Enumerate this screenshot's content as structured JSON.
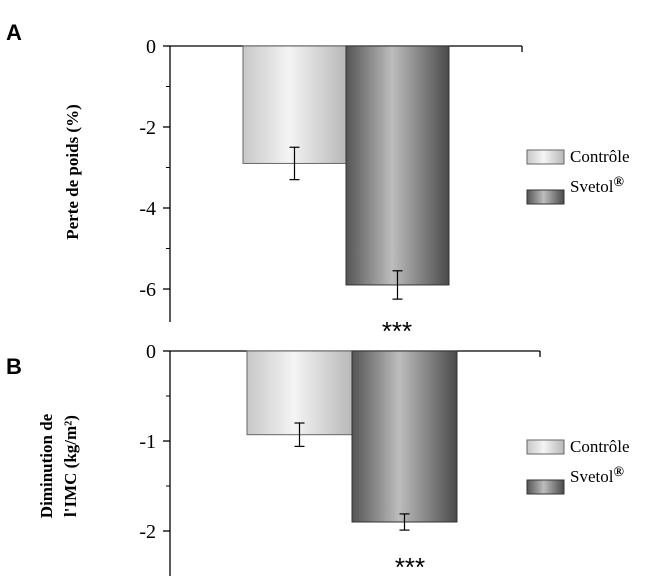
{
  "colors": {
    "control_bar": "#dcdcdc",
    "svetol_bar": "#7a7a7a",
    "axis": "#000000",
    "text": "#000000"
  },
  "chart_data": [
    {
      "type": "bar",
      "panel_label": "A",
      "ylabel": "Perte de poids (%)",
      "ylim": [
        -6.8,
        0
      ],
      "yticks": [
        0,
        -2,
        -4,
        -6
      ],
      "ytick_labels": [
        "0",
        "-2",
        "-4",
        "-6"
      ],
      "legend": "right",
      "series": [
        {
          "name": "Contrôle",
          "value": -2.9,
          "error": 0.4
        },
        {
          "name": "Svetol",
          "name_suffix": "®",
          "value": -5.9,
          "error": 0.35,
          "annotation": "***"
        }
      ]
    },
    {
      "type": "bar",
      "panel_label": "B",
      "ylabel_lines": [
        "Diminution de",
        "l'IMC (kg/m²)"
      ],
      "ylim": [
        -2.4,
        0
      ],
      "yticks": [
        0,
        -1,
        -2
      ],
      "ytick_labels": [
        "0",
        "-1",
        "-2"
      ],
      "legend": "right",
      "series": [
        {
          "name": "Contrôle",
          "value": -0.93,
          "error": 0.13
        },
        {
          "name": "Svetol",
          "name_suffix": "®",
          "value": -1.9,
          "error": 0.09,
          "annotation": "***"
        }
      ]
    }
  ]
}
